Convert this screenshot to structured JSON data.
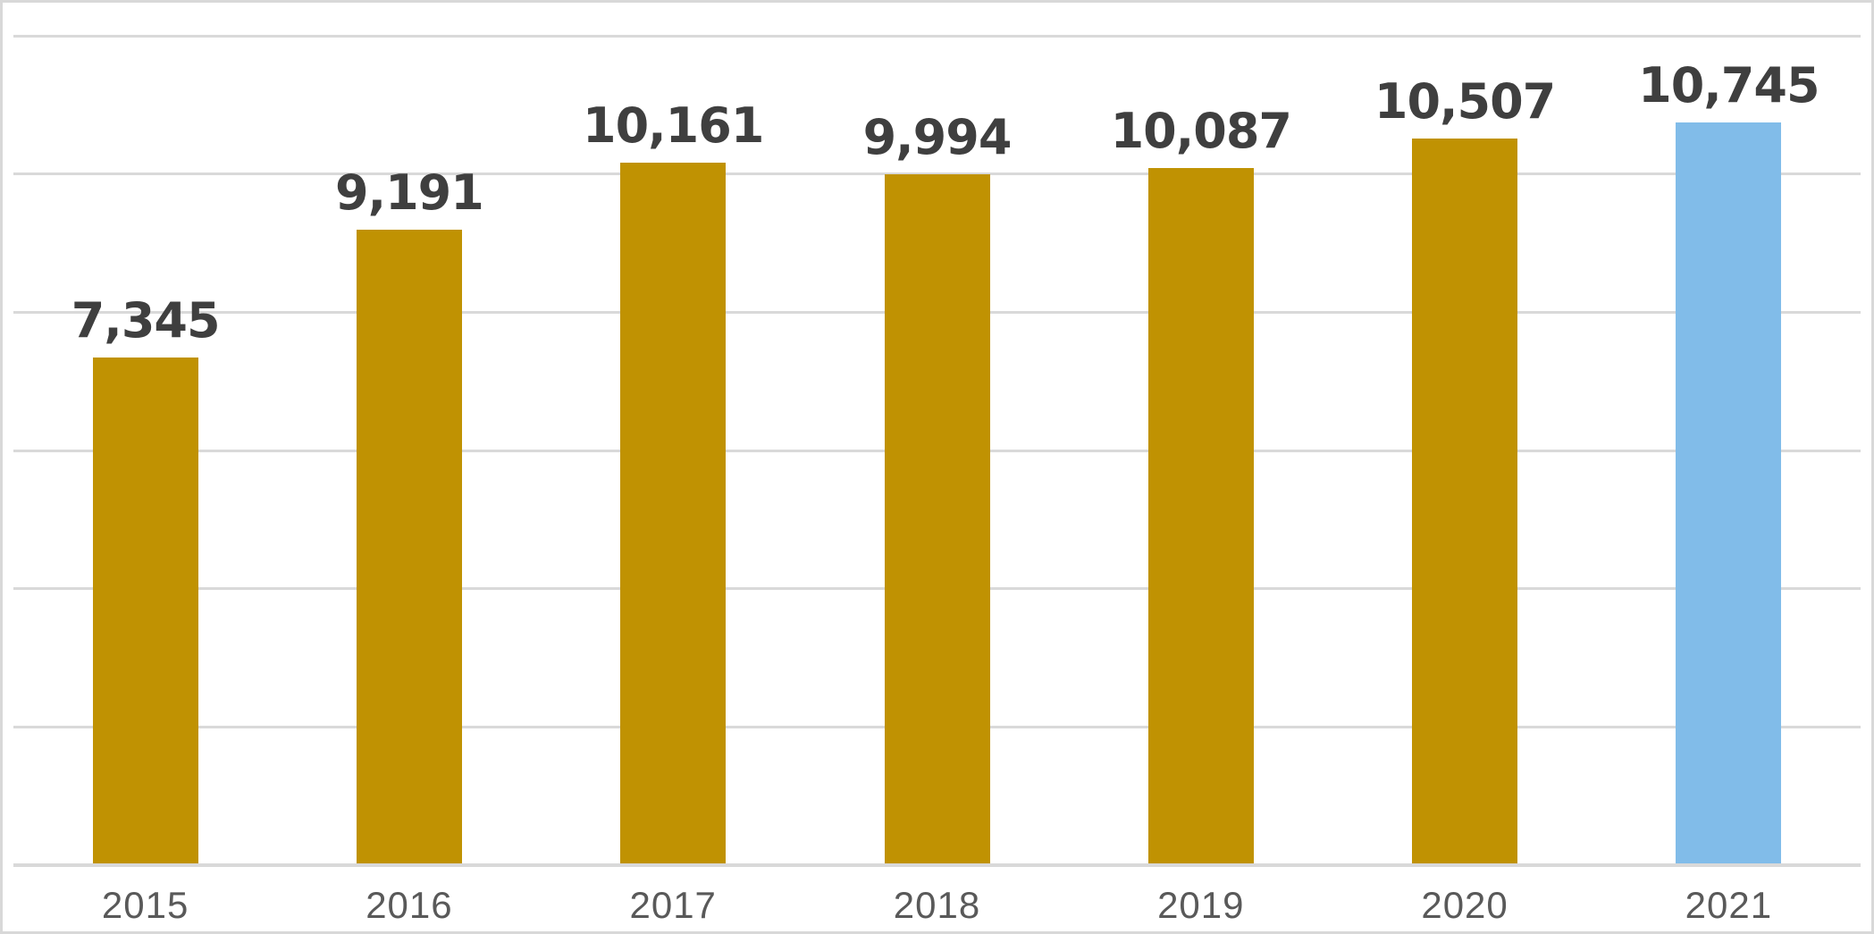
{
  "chart_data": {
    "type": "bar",
    "title": "",
    "xlabel": "",
    "ylabel": "",
    "categories": [
      "2015",
      "2016",
      "2017",
      "2018",
      "2019",
      "2020",
      "2021"
    ],
    "values": [
      7345,
      9191,
      10161,
      9994,
      10087,
      10507,
      10745
    ],
    "value_labels": [
      "7,345",
      "9,191",
      "10,161",
      "9,994",
      "10,087",
      "10,507",
      "10,745"
    ],
    "bar_colors": [
      "#C09202",
      "#C09202",
      "#C09202",
      "#C09202",
      "#C09202",
      "#C09202",
      "#81BCE9"
    ],
    "ylim": [
      0,
      12000
    ],
    "gridline_interval": 2000,
    "grid": "horizontal-only",
    "legend": "none",
    "y_axis_tick_labels_visible": false,
    "data_labels_visible": true,
    "colors": {
      "default_bar": "#C09202",
      "highlight_bar": "#81BCE9",
      "gridline": "#D9D9D9",
      "axis_line": "#D9D9D9",
      "data_label_text": "#3F3F3F",
      "category_label_text": "#595959",
      "frame_border": "#D8D8D8",
      "background": "#FFFFFF"
    }
  }
}
